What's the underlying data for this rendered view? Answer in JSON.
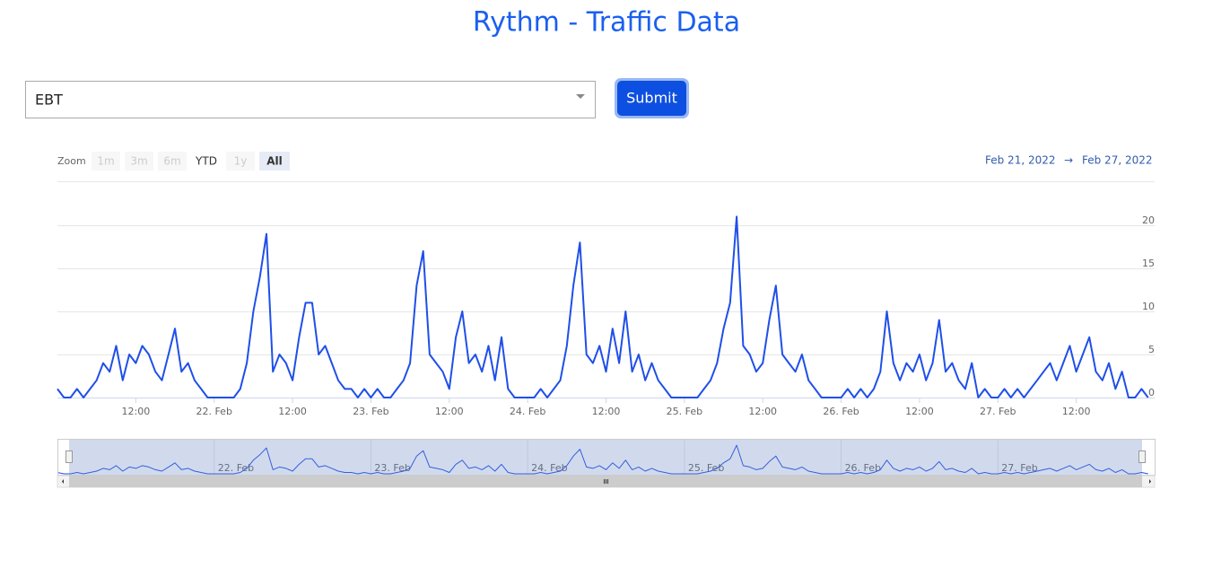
{
  "title": "Rythm - Traffic Data",
  "form": {
    "select": "EBT",
    "submit": "Submit"
  },
  "range_selector": {
    "label": "Zoom",
    "buttons": [
      "1m",
      "3m",
      "6m",
      "YTD",
      "1y",
      "All"
    ],
    "from": "Feb 21, 2022",
    "separator": "→",
    "to": "Feb 27, 2022"
  },
  "chart_data": {
    "type": "line",
    "color": "#1f4fe8",
    "grid": true,
    "x": [
      "2022-02-21 00:00",
      "2022-02-21 01:00",
      "2022-02-21 02:00",
      "2022-02-21 03:00",
      "2022-02-21 04:00",
      "2022-02-21 05:00",
      "2022-02-21 06:00",
      "2022-02-21 07:00",
      "2022-02-21 08:00",
      "2022-02-21 09:00",
      "2022-02-21 10:00",
      "2022-02-21 11:00",
      "2022-02-21 12:00",
      "2022-02-21 13:00",
      "2022-02-21 14:00",
      "2022-02-21 15:00",
      "2022-02-21 16:00",
      "2022-02-21 17:00",
      "2022-02-21 18:00",
      "2022-02-21 19:00",
      "2022-02-21 20:00",
      "2022-02-21 21:00",
      "2022-02-21 22:00",
      "2022-02-21 23:00",
      "2022-02-22 00:00",
      "2022-02-22 01:00",
      "2022-02-22 02:00",
      "2022-02-22 03:00",
      "2022-02-22 04:00",
      "2022-02-22 05:00",
      "2022-02-22 06:00",
      "2022-02-22 07:00",
      "2022-02-22 08:00",
      "2022-02-22 09:00",
      "2022-02-22 10:00",
      "2022-02-22 11:00",
      "2022-02-22 12:00",
      "2022-02-22 13:00",
      "2022-02-22 14:00",
      "2022-02-22 15:00",
      "2022-02-22 16:00",
      "2022-02-22 17:00",
      "2022-02-22 18:00",
      "2022-02-22 19:00",
      "2022-02-22 20:00",
      "2022-02-22 21:00",
      "2022-02-22 22:00",
      "2022-02-22 23:00",
      "2022-02-23 00:00",
      "2022-02-23 01:00",
      "2022-02-23 02:00",
      "2022-02-23 03:00",
      "2022-02-23 04:00",
      "2022-02-23 05:00",
      "2022-02-23 06:00",
      "2022-02-23 07:00",
      "2022-02-23 08:00",
      "2022-02-23 09:00",
      "2022-02-23 10:00",
      "2022-02-23 11:00",
      "2022-02-23 12:00",
      "2022-02-23 13:00",
      "2022-02-23 14:00",
      "2022-02-23 15:00",
      "2022-02-23 16:00",
      "2022-02-23 17:00",
      "2022-02-23 18:00",
      "2022-02-23 19:00",
      "2022-02-23 20:00",
      "2022-02-23 21:00",
      "2022-02-23 22:00",
      "2022-02-23 23:00",
      "2022-02-24 00:00",
      "2022-02-24 01:00",
      "2022-02-24 02:00",
      "2022-02-24 03:00",
      "2022-02-24 04:00",
      "2022-02-24 05:00",
      "2022-02-24 06:00",
      "2022-02-24 07:00",
      "2022-02-24 08:00",
      "2022-02-24 09:00",
      "2022-02-24 10:00",
      "2022-02-24 11:00",
      "2022-02-24 12:00",
      "2022-02-24 13:00",
      "2022-02-24 14:00",
      "2022-02-24 15:00",
      "2022-02-24 16:00",
      "2022-02-24 17:00",
      "2022-02-24 18:00",
      "2022-02-24 19:00",
      "2022-02-24 20:00",
      "2022-02-24 21:00",
      "2022-02-24 22:00",
      "2022-02-24 23:00",
      "2022-02-25 00:00",
      "2022-02-25 01:00",
      "2022-02-25 02:00",
      "2022-02-25 03:00",
      "2022-02-25 04:00",
      "2022-02-25 05:00",
      "2022-02-25 06:00",
      "2022-02-25 07:00",
      "2022-02-25 08:00",
      "2022-02-25 09:00",
      "2022-02-25 10:00",
      "2022-02-25 11:00",
      "2022-02-25 12:00",
      "2022-02-25 13:00",
      "2022-02-25 14:00",
      "2022-02-25 15:00",
      "2022-02-25 16:00",
      "2022-02-25 17:00",
      "2022-02-25 18:00",
      "2022-02-25 19:00",
      "2022-02-25 20:00",
      "2022-02-25 21:00",
      "2022-02-25 22:00",
      "2022-02-25 23:00",
      "2022-02-26 00:00",
      "2022-02-26 01:00",
      "2022-02-26 02:00",
      "2022-02-26 03:00",
      "2022-02-26 04:00",
      "2022-02-26 05:00",
      "2022-02-26 06:00",
      "2022-02-26 07:00",
      "2022-02-26 08:00",
      "2022-02-26 09:00",
      "2022-02-26 10:00",
      "2022-02-26 11:00",
      "2022-02-26 12:00",
      "2022-02-26 13:00",
      "2022-02-26 14:00",
      "2022-02-26 15:00",
      "2022-02-26 16:00",
      "2022-02-26 17:00",
      "2022-02-26 18:00",
      "2022-02-26 19:00",
      "2022-02-26 20:00",
      "2022-02-26 21:00",
      "2022-02-26 22:00",
      "2022-02-26 23:00",
      "2022-02-27 00:00",
      "2022-02-27 01:00",
      "2022-02-27 02:00",
      "2022-02-27 03:00",
      "2022-02-27 04:00",
      "2022-02-27 05:00",
      "2022-02-27 06:00",
      "2022-02-27 07:00",
      "2022-02-27 08:00",
      "2022-02-27 09:00",
      "2022-02-27 10:00",
      "2022-02-27 11:00",
      "2022-02-27 12:00",
      "2022-02-27 13:00",
      "2022-02-27 14:00",
      "2022-02-27 15:00",
      "2022-02-27 16:00",
      "2022-02-27 17:00",
      "2022-02-27 18:00",
      "2022-02-27 19:00",
      "2022-02-27 20:00",
      "2022-02-27 21:00",
      "2022-02-27 22:00",
      "2022-02-27 23:00"
    ],
    "values": [
      1,
      0,
      0,
      1,
      0,
      1,
      2,
      4,
      3,
      6,
      2,
      5,
      4,
      6,
      5,
      3,
      2,
      5,
      8,
      3,
      4,
      2,
      1,
      0,
      0,
      0,
      0,
      0,
      1,
      4,
      10,
      14,
      19,
      3,
      5,
      4,
      2,
      7,
      11,
      11,
      5,
      6,
      4,
      2,
      1,
      1,
      0,
      1,
      0,
      1,
      0,
      0,
      1,
      2,
      4,
      13,
      17,
      5,
      4,
      3,
      1,
      7,
      10,
      4,
      5,
      3,
      6,
      2,
      7,
      1,
      0,
      0,
      0,
      0,
      1,
      0,
      1,
      2,
      6,
      13,
      18,
      5,
      4,
      6,
      3,
      8,
      4,
      10,
      3,
      5,
      2,
      4,
      2,
      1,
      0,
      0,
      0,
      0,
      0,
      1,
      2,
      4,
      8,
      11,
      21,
      6,
      5,
      3,
      4,
      9,
      13,
      5,
      4,
      3,
      5,
      2,
      1,
      0,
      0,
      0,
      0,
      1,
      0,
      1,
      0,
      1,
      3,
      10,
      4,
      2,
      4,
      3,
      5,
      2,
      4,
      9,
      3,
      4,
      2,
      1,
      4,
      0,
      1,
      0,
      0,
      1,
      0,
      1,
      0,
      1,
      2,
      3,
      4,
      2,
      4,
      6,
      3,
      5,
      7,
      3,
      2,
      4,
      1,
      3,
      0,
      0,
      1,
      0
    ],
    "xlim": [
      "2022-02-21 00:00",
      "2022-02-28 00:00"
    ],
    "xticks": [
      {
        "value": "2022-02-21 12:00",
        "label": "12:00"
      },
      {
        "value": "2022-02-22 00:00",
        "label": "22. Feb"
      },
      {
        "value": "2022-02-22 12:00",
        "label": "12:00"
      },
      {
        "value": "2022-02-23 00:00",
        "label": "23. Feb"
      },
      {
        "value": "2022-02-23 12:00",
        "label": "12:00"
      },
      {
        "value": "2022-02-24 00:00",
        "label": "24. Feb"
      },
      {
        "value": "2022-02-24 12:00",
        "label": "12:00"
      },
      {
        "value": "2022-02-25 00:00",
        "label": "25. Feb"
      },
      {
        "value": "2022-02-25 12:00",
        "label": "12:00"
      },
      {
        "value": "2022-02-26 00:00",
        "label": "26. Feb"
      },
      {
        "value": "2022-02-26 12:00",
        "label": "12:00"
      },
      {
        "value": "2022-02-27 00:00",
        "label": "27. Feb"
      },
      {
        "value": "2022-02-27 12:00",
        "label": "12:00"
      }
    ],
    "ylim": [
      0,
      25
    ],
    "yticks": [
      0,
      5,
      10,
      15,
      20
    ]
  }
}
